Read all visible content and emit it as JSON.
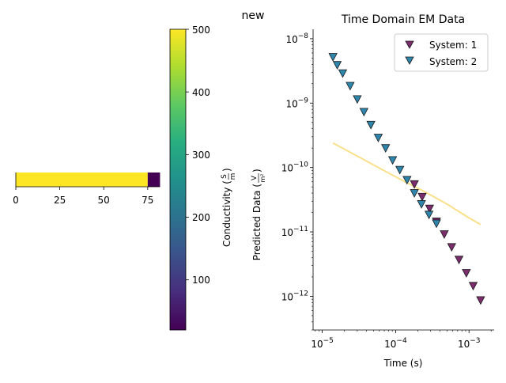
{
  "figure": {
    "suptitle": "new"
  },
  "chart_data": [
    {
      "type": "heatmap",
      "title": "",
      "xlabel": "",
      "ylabel": "",
      "xlim": [
        0,
        82
      ],
      "x_ticks": [
        "0",
        "25",
        "50",
        "75"
      ],
      "segments": [
        {
          "x0": 0,
          "x1": 75,
          "value": 500
        },
        {
          "x0": 75,
          "x1": 82,
          "value": 20
        }
      ],
      "colorbar": {
        "label": "Conductivity ($\\frac{S}{m}$)",
        "label_prefix": "Conductivity (",
        "label_num": "S",
        "label_den": "m",
        "label_suffix": ")",
        "range": [
          20,
          500
        ],
        "ticks": [
          "100",
          "200",
          "300",
          "400",
          "500"
        ],
        "tick_values": [
          100,
          200,
          300,
          400,
          500
        ],
        "colormap": "viridis"
      }
    },
    {
      "type": "scatter",
      "title": "Time Domain EM Data",
      "xlabel": "Time (s)",
      "ylabel": "Predicted Data ($\\frac{V}{m^2}$)",
      "ylabel_prefix": "Predicted Data (",
      "ylabel_num": "V",
      "ylabel_den": "m²",
      "ylabel_suffix": ")",
      "xscale": "log",
      "yscale": "log",
      "xlim": [
        7.5e-06,
        0.0022
      ],
      "ylim": [
        3e-13,
        1.4e-08
      ],
      "x_ticks": [
        {
          "value": 1e-05,
          "base": "10",
          "exp": "−5"
        },
        {
          "value": 0.0001,
          "base": "10",
          "exp": "−4"
        },
        {
          "value": 0.001,
          "base": "10",
          "exp": "−3"
        }
      ],
      "y_ticks": [
        {
          "value": 1e-08,
          "base": "10",
          "exp": "−8"
        },
        {
          "value": 1e-09,
          "base": "10",
          "exp": "−9"
        },
        {
          "value": 1e-10,
          "base": "10",
          "exp": "−10"
        },
        {
          "value": 1e-11,
          "base": "10",
          "exp": "−11"
        },
        {
          "value": 1e-12,
          "base": "10",
          "exp": "−12"
        }
      ],
      "legend_position": "top-right",
      "series": [
        {
          "name": "System: 1",
          "marker": "triangle-down",
          "color": "#7b2c6d",
          "x": [
            0.00018,
            0.00023,
            0.00029,
            0.00036,
            0.00046,
            0.00058,
            0.00073,
            0.00092,
            0.00114,
            0.00144
          ],
          "y": [
            5.5e-11,
            3.5e-11,
            2.3e-11,
            1.45e-11,
            9.2e-12,
            5.8e-12,
            3.7e-12,
            2.3e-12,
            1.45e-12,
            8.7e-13
          ]
        },
        {
          "name": "System: 2",
          "marker": "triangle-down",
          "color": "#2f86ad",
          "x": [
            1.4e-05,
            1.6e-05,
            1.9e-05,
            2.4e-05,
            3e-05,
            3.7e-05,
            4.6e-05,
            5.8e-05,
            7.3e-05,
            9.1e-05,
            0.000114,
            0.000143,
            0.00018,
            0.000225,
            0.000285,
            0.00036
          ],
          "y": [
            5.2e-09,
            3.9e-09,
            2.9e-09,
            1.85e-09,
            1.15e-09,
            7.3e-10,
            4.6e-10,
            2.9e-10,
            2e-10,
            1.3e-10,
            9.2e-11,
            6.4e-11,
            4e-11,
            2.7e-11,
            1.85e-11,
            1.35e-11
          ]
        },
        {
          "name": "",
          "type": "line",
          "color": "#fadd7d",
          "x": [
            1.4e-05,
            3e-05,
            6e-05,
            0.00012,
            0.00025,
            0.0005,
            0.001,
            0.00144
          ],
          "y": [
            2.4e-10,
            1.5e-10,
            9.8e-11,
            6.4e-11,
            4.2e-11,
            2.7e-11,
            1.65e-11,
            1.3e-11
          ]
        }
      ]
    }
  ]
}
